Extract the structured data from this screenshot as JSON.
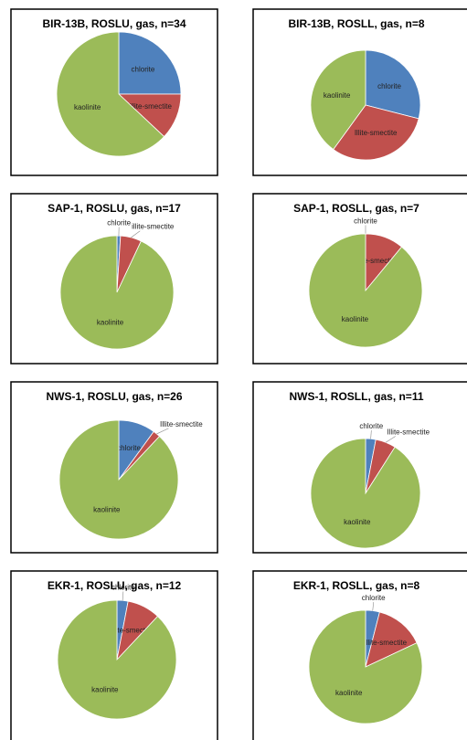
{
  "chart_data": [
    {
      "type": "pie",
      "title": "BIR-13B, ROSLU, gas, n=34",
      "categories": [
        "chlorite",
        "illite-smectite",
        "kaolinite"
      ],
      "values": [
        25,
        12,
        63
      ],
      "colors": [
        "#4f81bd",
        "#c0504d",
        "#9bbb59"
      ]
    },
    {
      "type": "pie",
      "title": "BIR-13B, ROSLL, gas, n=8",
      "categories": [
        "chlorite",
        "Illite-smectite",
        "kaolinite"
      ],
      "values": [
        29,
        31,
        40
      ],
      "colors": [
        "#4f81bd",
        "#c0504d",
        "#9bbb59"
      ]
    },
    {
      "type": "pie",
      "title": "SAP-1, ROSLU, gas, n=17",
      "categories": [
        "chlorite",
        "illite-smectite",
        "kaolinite"
      ],
      "values": [
        1,
        6,
        93
      ],
      "colors": [
        "#4f81bd",
        "#c0504d",
        "#9bbb59"
      ]
    },
    {
      "type": "pie",
      "title": "SAP-1, ROSLL, gas, n=7",
      "categories": [
        "chlorite",
        "Illite-smectite",
        "kaolinite"
      ],
      "values": [
        0,
        11,
        89
      ],
      "colors": [
        "#4f81bd",
        "#c0504d",
        "#9bbb59"
      ]
    },
    {
      "type": "pie",
      "title": "NWS-1, ROSLU, gas, n=26",
      "categories": [
        "chlorite",
        "Illite-smectite",
        "kaolinite"
      ],
      "values": [
        10,
        2,
        88
      ],
      "colors": [
        "#4f81bd",
        "#c0504d",
        "#9bbb59"
      ]
    },
    {
      "type": "pie",
      "title": "NWS-1, ROSLL, gas, n=11",
      "categories": [
        "chlorite",
        "Illite-smectite",
        "kaolinite"
      ],
      "values": [
        3,
        6,
        91
      ],
      "colors": [
        "#4f81bd",
        "#c0504d",
        "#9bbb59"
      ]
    },
    {
      "type": "pie",
      "title": "EKR-1, ROSLU, gas, n=12",
      "categories": [
        "chlorite",
        "Illite-smectite",
        "kaolinite"
      ],
      "values": [
        3,
        9,
        88
      ],
      "colors": [
        "#4f81bd",
        "#c0504d",
        "#9bbb59"
      ]
    },
    {
      "type": "pie",
      "title": "EKR-1, ROSLL, gas, n=8",
      "categories": [
        "chlorite",
        "Illite-smectite",
        "kaolinite"
      ],
      "values": [
        4,
        14,
        82
      ],
      "colors": [
        "#4f81bd",
        "#c0504d",
        "#9bbb59"
      ]
    }
  ]
}
